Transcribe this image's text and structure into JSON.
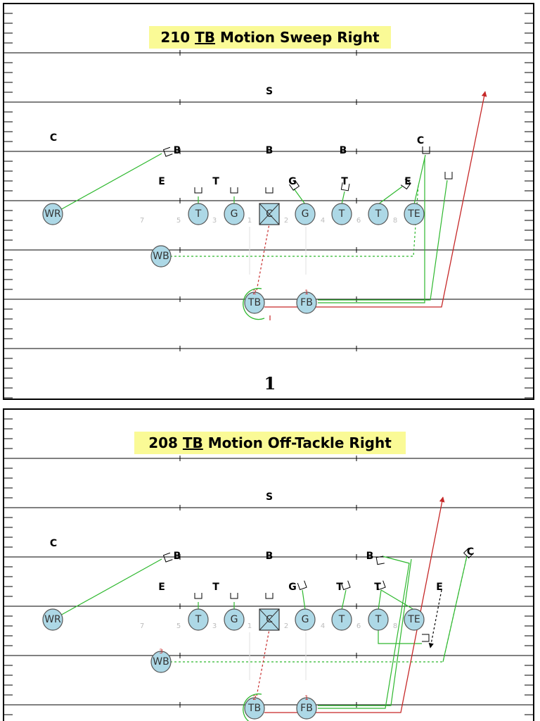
{
  "plays": [
    {
      "title_number": "210",
      "title_ball_carrier": "TB",
      "title_rest": "Motion Sweep Right",
      "page_number": "1",
      "defenders": [
        {
          "id": "S",
          "label": "S"
        },
        {
          "id": "C_left",
          "label": "C"
        },
        {
          "id": "B_left",
          "label": "B"
        },
        {
          "id": "B_mid",
          "label": "B"
        },
        {
          "id": "B_right",
          "label": "B"
        },
        {
          "id": "C_right",
          "label": "C"
        },
        {
          "id": "E_left",
          "label": "E"
        },
        {
          "id": "T_left",
          "label": "T"
        },
        {
          "id": "G",
          "label": "G"
        },
        {
          "id": "T_right",
          "label": "T"
        },
        {
          "id": "E_right",
          "label": "E"
        }
      ],
      "players": [
        {
          "id": "WR",
          "label": "WR"
        },
        {
          "id": "T_lt",
          "label": "T"
        },
        {
          "id": "G_lg",
          "label": "G"
        },
        {
          "id": "C",
          "label": "C"
        },
        {
          "id": "G_rg",
          "label": "G"
        },
        {
          "id": "T_rt",
          "label": "T"
        },
        {
          "id": "T_wing",
          "label": "T"
        },
        {
          "id": "TE",
          "label": "TE"
        },
        {
          "id": "WB",
          "label": "WB"
        },
        {
          "id": "TB",
          "label": "TB",
          "badge": "2"
        },
        {
          "id": "FB",
          "label": "FB",
          "badge": "1"
        }
      ],
      "holes": [
        "7",
        "5",
        "3",
        "1",
        "2",
        "4",
        "6",
        "8"
      ]
    },
    {
      "title_number": "208",
      "title_ball_carrier": "TB",
      "title_rest": "Motion Off-Tackle Right",
      "defenders": [
        {
          "id": "S",
          "label": "S"
        },
        {
          "id": "C_left",
          "label": "C"
        },
        {
          "id": "B_left",
          "label": "B"
        },
        {
          "id": "B_mid",
          "label": "B"
        },
        {
          "id": "B_right",
          "label": "B"
        },
        {
          "id": "C_right",
          "label": "C"
        },
        {
          "id": "E_left",
          "label": "E"
        },
        {
          "id": "T_left",
          "label": "T"
        },
        {
          "id": "G",
          "label": "G"
        },
        {
          "id": "T_right",
          "label": "T"
        },
        {
          "id": "T_right2",
          "label": "T"
        },
        {
          "id": "E_right",
          "label": "E"
        }
      ],
      "players": [
        {
          "id": "WR",
          "label": "WR"
        },
        {
          "id": "T_lt",
          "label": "T"
        },
        {
          "id": "G_lg",
          "label": "G"
        },
        {
          "id": "C",
          "label": "C"
        },
        {
          "id": "G_rg",
          "label": "G"
        },
        {
          "id": "T_rt",
          "label": "T"
        },
        {
          "id": "T_wing",
          "label": "T"
        },
        {
          "id": "TE",
          "label": "TE"
        },
        {
          "id": "WB",
          "label": "WB",
          "badge": "3"
        },
        {
          "id": "TB",
          "label": "TB",
          "badge": "2"
        },
        {
          "id": "FB",
          "label": "FB",
          "badge": "1"
        }
      ],
      "holes": [
        "7",
        "5",
        "3",
        "1",
        "2",
        "4",
        "6",
        "8"
      ]
    }
  ],
  "colors": {
    "player_fill": "#add8e6",
    "title_bg": "#fafa96",
    "block": "#2eb82e",
    "run": "#c62828",
    "motion_green": "#2eb82e"
  }
}
